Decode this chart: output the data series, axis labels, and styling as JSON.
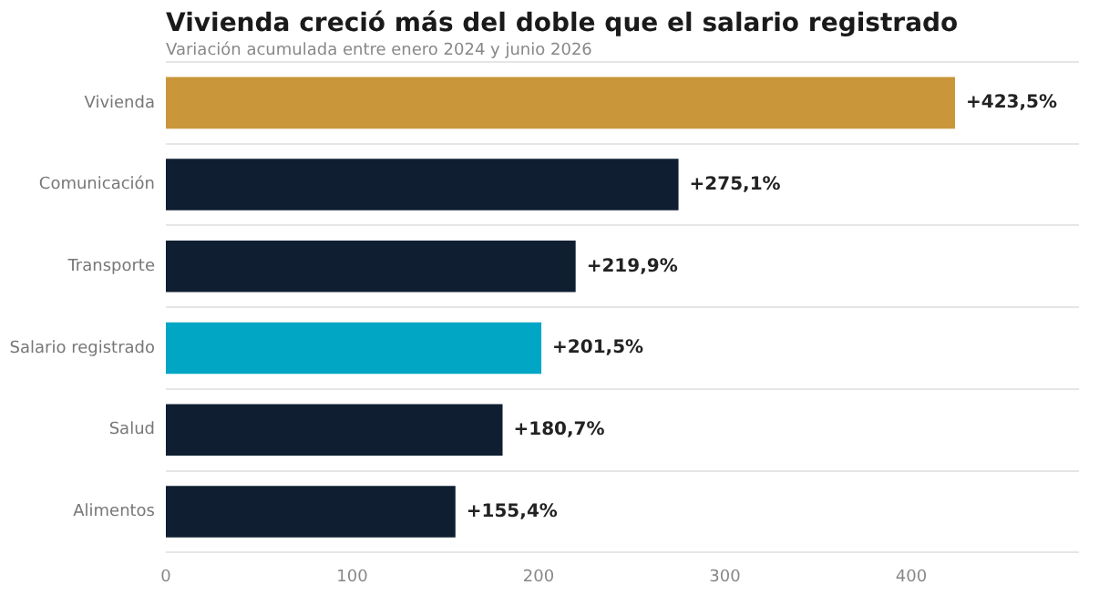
{
  "chart_data": {
    "type": "bar",
    "orientation": "horizontal",
    "title": "Vivienda creció más del doble que el salario registrado",
    "subtitle": "Variación acumulada entre enero 2024 y junio 2026",
    "categories": [
      "Vivienda",
      "Comunicación",
      "Transporte",
      "Salario registrado",
      "Salud",
      "Alimentos"
    ],
    "values": [
      423.5,
      275.1,
      219.9,
      201.5,
      180.7,
      155.4
    ],
    "colors": [
      "#c9973a",
      "#0f1f31",
      "#0f1f31",
      "#00a6c4",
      "#0f1f31",
      "#0f1f31"
    ],
    "value_labels": [
      "+423,5%",
      "+275,1%",
      "+219,9%",
      "+201,5%",
      "+180,7%",
      "+155,4%"
    ],
    "xlim": [
      0,
      490
    ],
    "xticks": [
      0,
      100,
      200,
      300,
      400
    ],
    "grid": "y"
  }
}
